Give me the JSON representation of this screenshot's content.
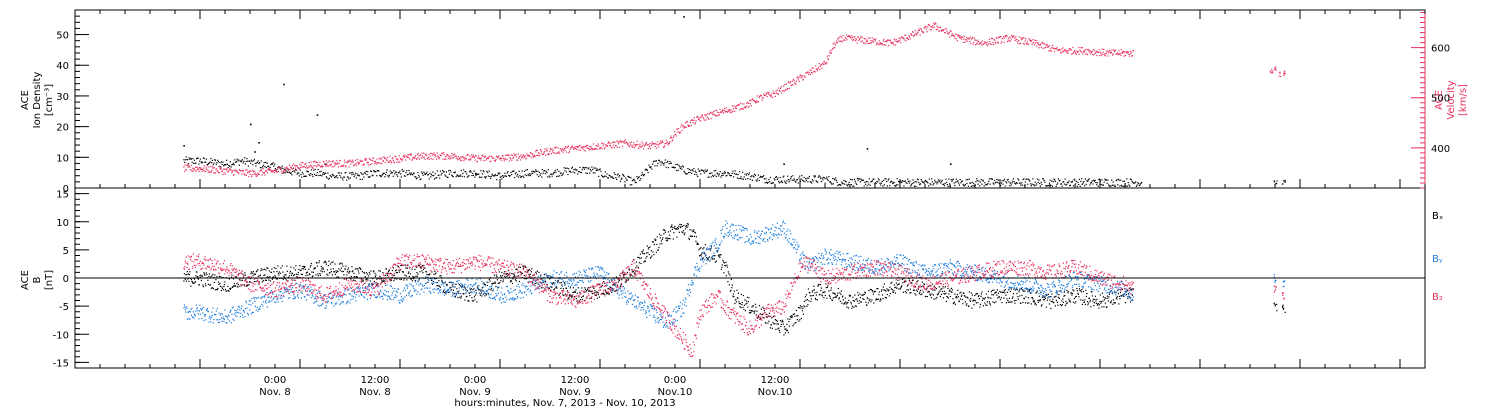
{
  "chart_data": [
    {
      "type": "scatter",
      "panel": "top",
      "left_axis": {
        "label_lines": [
          "ACE",
          "Ion Density",
          "[cm⁻³]"
        ],
        "ylim": [
          0,
          58
        ],
        "ticks": [
          0,
          10,
          20,
          30,
          40,
          50
        ],
        "tick_labels": [
          "0",
          "10",
          "20",
          "30",
          "40",
          "50"
        ]
      },
      "right_axis": {
        "label_lines": [
          "ACE",
          "Velocity",
          "[km/s]"
        ],
        "ylim": [
          320,
          675
        ],
        "ticks": [
          400,
          500,
          600
        ],
        "tick_labels": [
          "400",
          "500",
          "600"
        ],
        "color": "#e8325f"
      },
      "series": [
        {
          "color": "#000000",
          "axis": "left",
          "trend": [
            [
              0,
              9
            ],
            [
              3,
              8
            ],
            [
              5,
              9
            ],
            [
              7,
              8
            ],
            [
              9,
              7
            ],
            [
              10,
              6
            ],
            [
              12,
              5
            ],
            [
              14,
              5
            ],
            [
              16,
              4
            ],
            [
              19,
              4
            ],
            [
              21,
              5
            ],
            [
              24,
              5
            ],
            [
              27,
              4
            ],
            [
              30,
              5
            ],
            [
              33,
              5
            ],
            [
              36,
              4
            ],
            [
              39,
              5
            ],
            [
              42,
              5
            ],
            [
              45,
              6
            ],
            [
              46,
              6
            ],
            [
              47,
              6
            ],
            [
              48,
              5
            ],
            [
              49,
              4
            ],
            [
              50,
              4
            ],
            [
              51,
              3
            ],
            [
              52,
              2
            ],
            [
              53,
              4
            ],
            [
              54,
              7
            ],
            [
              55,
              9
            ],
            [
              56,
              8
            ],
            [
              57,
              7
            ],
            [
              58,
              6
            ],
            [
              60,
              5
            ],
            [
              63,
              5
            ],
            [
              66,
              4
            ],
            [
              68,
              3
            ],
            [
              72,
              3
            ],
            [
              75,
              3
            ],
            [
              77,
              2
            ],
            [
              80,
              2
            ],
            [
              84,
              2
            ],
            [
              90,
              2
            ],
            [
              96,
              2
            ],
            [
              102,
              2
            ],
            [
              108,
              2
            ],
            [
              112,
              2
            ],
            [
              113,
              2
            ]
          ],
          "spikes": [
            [
              -2,
              14
            ],
            [
              6,
              21
            ],
            [
              7,
              15
            ],
            [
              6.5,
              12
            ],
            [
              10,
              34
            ],
            [
              14,
              24
            ],
            [
              15,
              8
            ],
            [
              33,
              5
            ],
            [
              58,
              56
            ],
            [
              70,
              8
            ],
            [
              80,
              13
            ],
            [
              90,
              8
            ]
          ],
          "gap_points": [
            [
              129,
              2
            ],
            [
              130,
              2
            ]
          ]
        },
        {
          "color": "#e8325f",
          "axis": "right",
          "trend": [
            [
              0,
              360
            ],
            [
              3,
              355
            ],
            [
              6,
              350
            ],
            [
              9,
              355
            ],
            [
              12,
              365
            ],
            [
              15,
              370
            ],
            [
              18,
              370
            ],
            [
              21,
              375
            ],
            [
              24,
              380
            ],
            [
              27,
              385
            ],
            [
              30,
              385
            ],
            [
              33,
              380
            ],
            [
              36,
              380
            ],
            [
              39,
              385
            ],
            [
              42,
              395
            ],
            [
              45,
              400
            ],
            [
              48,
              405
            ],
            [
              51,
              410
            ],
            [
              54,
              405
            ],
            [
              56,
              410
            ],
            [
              57,
              430
            ],
            [
              58,
              445
            ],
            [
              60,
              460
            ],
            [
              62,
              470
            ],
            [
              64,
              480
            ],
            [
              66,
              490
            ],
            [
              67,
              500
            ],
            [
              69,
              510
            ],
            [
              71,
              530
            ],
            [
              73,
              550
            ],
            [
              75,
              570
            ],
            [
              76,
              605
            ],
            [
              77,
              620
            ],
            [
              80,
              615
            ],
            [
              83,
              610
            ],
            [
              86,
              630
            ],
            [
              88,
              645
            ],
            [
              91,
              620
            ],
            [
              94,
              610
            ],
            [
              97,
              620
            ],
            [
              100,
              610
            ],
            [
              103,
              595
            ],
            [
              106,
              595
            ],
            [
              109,
              590
            ],
            [
              111,
              590
            ],
            [
              112,
              590
            ]
          ],
          "gap_points": [
            [
              128.5,
              555
            ],
            [
              129,
              560
            ],
            [
              129.5,
              548
            ],
            [
              130,
              550
            ]
          ]
        }
      ]
    },
    {
      "type": "scatter",
      "panel": "bottom",
      "left_axis": {
        "label_lines": [
          "ACE",
          "B",
          "[nT]"
        ],
        "ylim": [
          -16,
          16
        ],
        "ticks": [
          -15,
          -10,
          -5,
          0,
          5,
          10,
          15
        ],
        "tick_labels": [
          "-15",
          "-10",
          "-5",
          "0",
          "5",
          "10",
          "15"
        ]
      },
      "legend": [
        "Bₓ",
        "Bᵧ",
        "B₂"
      ],
      "series": [
        {
          "name": "Bₓ",
          "color": "#000000",
          "trend": [
            [
              0,
              0
            ],
            [
              3,
              -1
            ],
            [
              6,
              0
            ],
            [
              9,
              1
            ],
            [
              12,
              1
            ],
            [
              15,
              2
            ],
            [
              18,
              1
            ],
            [
              21,
              0
            ],
            [
              24,
              1
            ],
            [
              27,
              1
            ],
            [
              30,
              -2
            ],
            [
              33,
              -3
            ],
            [
              36,
              0
            ],
            [
              39,
              1
            ],
            [
              42,
              -1
            ],
            [
              45,
              -3
            ],
            [
              48,
              -2
            ],
            [
              50,
              -1
            ],
            [
              52,
              2
            ],
            [
              54,
              5
            ],
            [
              56,
              8
            ],
            [
              58,
              9
            ],
            [
              59,
              8
            ],
            [
              60,
              5
            ],
            [
              62,
              4
            ],
            [
              63,
              2
            ],
            [
              64,
              -3
            ],
            [
              66,
              -5
            ],
            [
              68,
              -7
            ],
            [
              70,
              -9
            ],
            [
              72,
              -6
            ],
            [
              73,
              -3
            ],
            [
              75,
              -2
            ],
            [
              78,
              -4
            ],
            [
              81,
              -3
            ],
            [
              84,
              -1
            ],
            [
              87,
              -2
            ],
            [
              90,
              -3
            ],
            [
              93,
              -4
            ],
            [
              96,
              -3
            ],
            [
              99,
              -3
            ],
            [
              102,
              -4
            ],
            [
              105,
              -3
            ],
            [
              108,
              -4
            ],
            [
              111,
              -3
            ],
            [
              112,
              -3
            ]
          ],
          "gap_points": [
            [
              129,
              -5
            ],
            [
              130,
              -5.5
            ]
          ]
        },
        {
          "name": "Bᵧ",
          "color": "#1f7fe0",
          "trend": [
            [
              0,
              -6
            ],
            [
              3,
              -7
            ],
            [
              6,
              -5
            ],
            [
              9,
              -3
            ],
            [
              12,
              -2
            ],
            [
              15,
              -4
            ],
            [
              18,
              -3
            ],
            [
              21,
              -2
            ],
            [
              24,
              -3
            ],
            [
              27,
              -1
            ],
            [
              30,
              -2
            ],
            [
              33,
              -1
            ],
            [
              36,
              -3
            ],
            [
              39,
              -2
            ],
            [
              42,
              0
            ],
            [
              45,
              0
            ],
            [
              48,
              1
            ],
            [
              50,
              -2
            ],
            [
              52,
              -4
            ],
            [
              54,
              -6
            ],
            [
              56,
              -8
            ],
            [
              58,
              -5
            ],
            [
              59,
              0
            ],
            [
              60,
              3
            ],
            [
              62,
              6
            ],
            [
              63,
              9
            ],
            [
              65,
              8
            ],
            [
              66,
              7
            ],
            [
              68,
              8
            ],
            [
              70,
              9
            ],
            [
              72,
              4
            ],
            [
              73,
              2
            ],
            [
              75,
              4
            ],
            [
              78,
              3
            ],
            [
              81,
              2
            ],
            [
              84,
              3
            ],
            [
              87,
              1
            ],
            [
              90,
              2
            ],
            [
              93,
              1
            ],
            [
              96,
              0
            ],
            [
              99,
              -1
            ],
            [
              102,
              -2
            ],
            [
              105,
              0
            ],
            [
              108,
              -1
            ],
            [
              111,
              -2
            ],
            [
              112,
              -3
            ]
          ],
          "gap_points": [
            [
              129,
              0
            ],
            [
              130,
              -1
            ]
          ]
        },
        {
          "name": "B₂",
          "color": "#e8325f",
          "trend": [
            [
              0,
              3
            ],
            [
              3,
              2
            ],
            [
              6,
              -1
            ],
            [
              9,
              -2
            ],
            [
              12,
              -1
            ],
            [
              15,
              -3
            ],
            [
              18,
              -1
            ],
            [
              21,
              -2
            ],
            [
              24,
              3
            ],
            [
              27,
              3
            ],
            [
              30,
              2
            ],
            [
              33,
              3
            ],
            [
              36,
              2
            ],
            [
              39,
              1
            ],
            [
              42,
              -3
            ],
            [
              45,
              -4
            ],
            [
              48,
              -2
            ],
            [
              50,
              -1
            ],
            [
              52,
              2
            ],
            [
              54,
              -3
            ],
            [
              56,
              -7
            ],
            [
              58,
              -11
            ],
            [
              59,
              -13
            ],
            [
              60,
              -6
            ],
            [
              62,
              -3
            ],
            [
              63,
              -5
            ],
            [
              65,
              -8
            ],
            [
              66,
              -9
            ],
            [
              68,
              -6
            ],
            [
              70,
              -5
            ],
            [
              72,
              2
            ],
            [
              73,
              3
            ],
            [
              75,
              0
            ],
            [
              78,
              1
            ],
            [
              81,
              2
            ],
            [
              84,
              1
            ],
            [
              87,
              -1
            ],
            [
              90,
              0
            ],
            [
              93,
              1
            ],
            [
              96,
              2
            ],
            [
              99,
              2
            ],
            [
              102,
              1
            ],
            [
              105,
              2
            ],
            [
              108,
              0
            ],
            [
              111,
              -1
            ],
            [
              112,
              -2
            ]
          ],
          "gap_points": [
            [
              129,
              -2
            ],
            [
              130,
              -3
            ]
          ]
        }
      ]
    },
    {
      "type": "x_axis",
      "xlim": [
        -15,
        147
      ],
      "ticks": [
        0,
        12,
        24,
        36,
        48,
        60,
        72,
        84,
        96,
        108,
        120,
        132,
        144
      ],
      "labeled_ticks": [
        {
          "hours": 9,
          "time": "0:00",
          "date": "Nov. 8"
        },
        {
          "hours": 21,
          "time": "12:00",
          "date": "Nov. 8"
        },
        {
          "hours": 33,
          "time": "0:00",
          "date": "Nov. 9"
        },
        {
          "hours": 45,
          "time": "12:00",
          "date": "Nov. 9"
        },
        {
          "hours": 57,
          "time": "0:00",
          "date": "Nov.10"
        },
        {
          "hours": 69,
          "time": "12:00",
          "date": "Nov.10"
        }
      ],
      "xlabel": "hours:minutes, Nov.  7, 2013 - Nov. 10, 2013"
    }
  ]
}
